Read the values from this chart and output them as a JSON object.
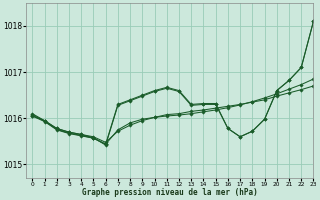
{
  "title": "Graphe pression niveau de la mer (hPa)",
  "background_color": "#cce8dc",
  "grid_color": "#99ccb8",
  "line_color": "#1a5c2a",
  "marker_color": "#1a5c2a",
  "xlim": [
    -0.5,
    23
  ],
  "ylim": [
    1014.7,
    1018.5
  ],
  "yticks": [
    1015,
    1016,
    1017,
    1018
  ],
  "xtick_labels": [
    "0",
    "1",
    "2",
    "3",
    "4",
    "5",
    "6",
    "7",
    "8",
    "9",
    "10",
    "11",
    "12",
    "13",
    "14",
    "15",
    "16",
    "17",
    "18",
    "19",
    "20",
    "21",
    "22",
    "23"
  ],
  "series1_x": [
    0,
    1,
    2,
    3,
    4,
    5,
    6,
    7,
    8,
    9,
    10,
    11,
    12,
    13,
    14,
    15,
    16,
    17,
    18,
    19,
    20,
    21,
    22,
    23
  ],
  "series1_y": [
    1016.05,
    1015.95,
    1015.78,
    1015.7,
    1015.65,
    1015.6,
    1015.48,
    1015.72,
    1015.85,
    1015.95,
    1016.02,
    1016.08,
    1016.1,
    1016.15,
    1016.18,
    1016.22,
    1016.26,
    1016.3,
    1016.35,
    1016.4,
    1016.48,
    1016.55,
    1016.62,
    1016.7
  ],
  "series2_x": [
    0,
    1,
    2,
    3,
    4,
    5,
    6,
    7,
    8,
    9,
    10,
    11,
    12,
    13,
    14,
    15,
    16,
    17,
    18,
    19,
    20,
    21,
    22,
    23
  ],
  "series2_y": [
    1016.05,
    1015.93,
    1015.75,
    1015.67,
    1015.62,
    1015.57,
    1015.44,
    1015.75,
    1015.9,
    1015.98,
    1016.02,
    1016.05,
    1016.07,
    1016.1,
    1016.14,
    1016.18,
    1016.23,
    1016.29,
    1016.36,
    1016.44,
    1016.53,
    1016.63,
    1016.73,
    1016.85
  ],
  "series3_x": [
    0,
    1,
    2,
    3,
    4,
    5,
    6,
    7,
    8,
    9,
    10,
    11,
    12,
    13,
    14,
    15,
    16,
    17,
    18,
    19,
    20,
    21,
    22,
    23
  ],
  "series3_y": [
    1016.1,
    1015.95,
    1015.78,
    1015.7,
    1015.65,
    1015.58,
    1015.42,
    1016.28,
    1016.38,
    1016.48,
    1016.58,
    1016.65,
    1016.58,
    1016.28,
    1016.3,
    1016.3,
    1015.78,
    1015.6,
    1015.72,
    1015.98,
    1016.6,
    1016.82,
    1017.1,
    1018.1
  ],
  "series4_x": [
    0,
    1,
    2,
    3,
    4,
    5,
    6,
    7,
    8,
    9,
    10,
    11,
    12,
    13,
    14,
    15,
    16,
    17,
    18,
    19,
    20,
    21,
    22,
    23
  ],
  "series4_y": [
    1016.08,
    1015.94,
    1015.76,
    1015.68,
    1015.63,
    1015.57,
    1015.44,
    1016.3,
    1016.4,
    1016.5,
    1016.6,
    1016.67,
    1016.6,
    1016.3,
    1016.32,
    1016.32,
    1015.78,
    1015.6,
    1015.72,
    1015.98,
    1016.6,
    1016.82,
    1017.1,
    1018.1
  ]
}
